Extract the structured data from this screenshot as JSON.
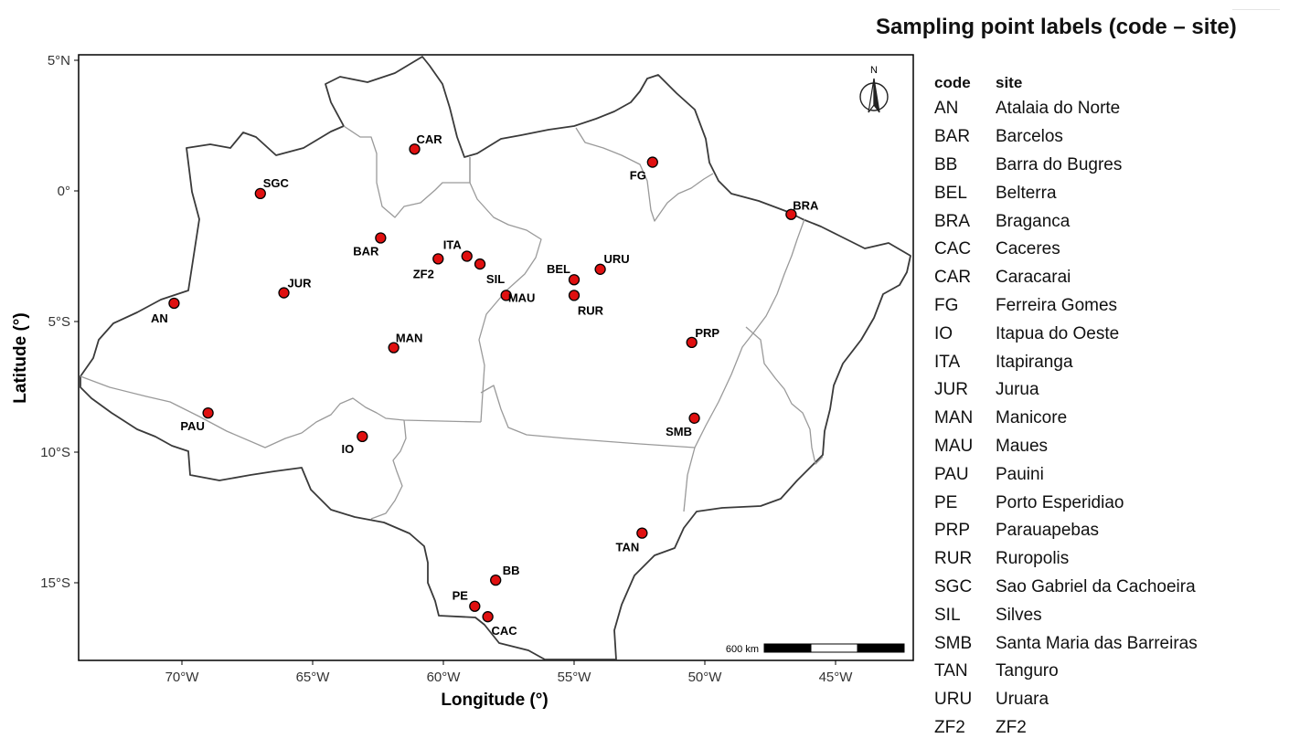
{
  "map": {
    "axes": {
      "x_label": "Longitude (°)",
      "y_label": "Latitude (°)",
      "x_ticks": [
        {
          "lon": -70,
          "label": "70°W"
        },
        {
          "lon": -65,
          "label": "65°W"
        },
        {
          "lon": -60,
          "label": "60°W"
        },
        {
          "lon": -55,
          "label": "55°W"
        },
        {
          "lon": -50,
          "label": "50°W"
        },
        {
          "lon": -45,
          "label": "45°W"
        }
      ],
      "y_ticks": [
        {
          "lat": 5,
          "label": "5°N"
        },
        {
          "lat": 0,
          "label": "0°"
        },
        {
          "lat": -5,
          "label": "5°S"
        },
        {
          "lat": -10,
          "label": "10°S"
        },
        {
          "lat": -15,
          "label": "15°S"
        }
      ]
    },
    "north_arrow_label": "N",
    "scale_bar_label": "600 km",
    "colors": {
      "point_fill": "#e01010",
      "point_stroke": "#000000",
      "state_border": "#9a9a9a",
      "outer_border": "#3a3a3a",
      "frame": "#000000"
    },
    "points": [
      {
        "code": "AN",
        "lon": -70.3,
        "lat": -4.3
      },
      {
        "code": "BAR",
        "lon": -62.4,
        "lat": -1.8
      },
      {
        "code": "BB",
        "lon": -58.0,
        "lat": -14.9
      },
      {
        "code": "BEL",
        "lon": -55.0,
        "lat": -3.4
      },
      {
        "code": "BRA",
        "lon": -46.7,
        "lat": -0.9
      },
      {
        "code": "CAC",
        "lon": -58.3,
        "lat": -16.3
      },
      {
        "code": "CAR",
        "lon": -61.1,
        "lat": 1.6
      },
      {
        "code": "FG",
        "lon": -52.0,
        "lat": 1.1
      },
      {
        "code": "IO",
        "lon": -63.1,
        "lat": -9.4
      },
      {
        "code": "ITA",
        "lon": -59.1,
        "lat": -2.5
      },
      {
        "code": "JUR",
        "lon": -66.1,
        "lat": -3.9
      },
      {
        "code": "MAN",
        "lon": -61.9,
        "lat": -6.0
      },
      {
        "code": "MAU",
        "lon": -57.6,
        "lat": -4.0
      },
      {
        "code": "PAU",
        "lon": -69.0,
        "lat": -8.5
      },
      {
        "code": "PE",
        "lon": -58.8,
        "lat": -15.9
      },
      {
        "code": "PRP",
        "lon": -50.5,
        "lat": -5.8
      },
      {
        "code": "RUR",
        "lon": -55.0,
        "lat": -4.0
      },
      {
        "code": "SGC",
        "lon": -67.0,
        "lat": -0.1
      },
      {
        "code": "SIL",
        "lon": -58.6,
        "lat": -2.8
      },
      {
        "code": "SMB",
        "lon": -50.4,
        "lat": -8.7
      },
      {
        "code": "TAN",
        "lon": -52.4,
        "lat": -13.1
      },
      {
        "code": "URU",
        "lon": -54.0,
        "lat": -3.0
      },
      {
        "code": "ZF2",
        "lon": -60.2,
        "lat": -2.6
      }
    ]
  },
  "legend": {
    "title": "Sampling point labels (code – site)",
    "header_code": "code",
    "header_site": "site",
    "rows": [
      {
        "code": "AN",
        "site": "Atalaia do Norte"
      },
      {
        "code": "BAR",
        "site": "Barcelos"
      },
      {
        "code": "BB",
        "site": "Barra do Bugres"
      },
      {
        "code": "BEL",
        "site": "Belterra"
      },
      {
        "code": "BRA",
        "site": "Braganca"
      },
      {
        "code": "CAC",
        "site": "Caceres"
      },
      {
        "code": "CAR",
        "site": "Caracarai"
      },
      {
        "code": "FG",
        "site": "Ferreira Gomes"
      },
      {
        "code": "IO",
        "site": "Itapua do Oeste"
      },
      {
        "code": "ITA",
        "site": "Itapiranga"
      },
      {
        "code": "JUR",
        "site": "Jurua"
      },
      {
        "code": "MAN",
        "site": "Manicore"
      },
      {
        "code": "MAU",
        "site": "Maues"
      },
      {
        "code": "PAU",
        "site": "Pauini"
      },
      {
        "code": "PE",
        "site": "Porto Esperidiao"
      },
      {
        "code": "PRP",
        "site": "Parauapebas"
      },
      {
        "code": "RUR",
        "site": "Ruropolis"
      },
      {
        "code": "SGC",
        "site": "Sao Gabriel da Cachoeira"
      },
      {
        "code": "SIL",
        "site": "Silves"
      },
      {
        "code": "SMB",
        "site": "Santa Maria das Barreiras"
      },
      {
        "code": "TAN",
        "site": "Tanguro"
      },
      {
        "code": "URU",
        "site": "Uruara"
      },
      {
        "code": "ZF2",
        "site": "ZF2"
      }
    ]
  }
}
